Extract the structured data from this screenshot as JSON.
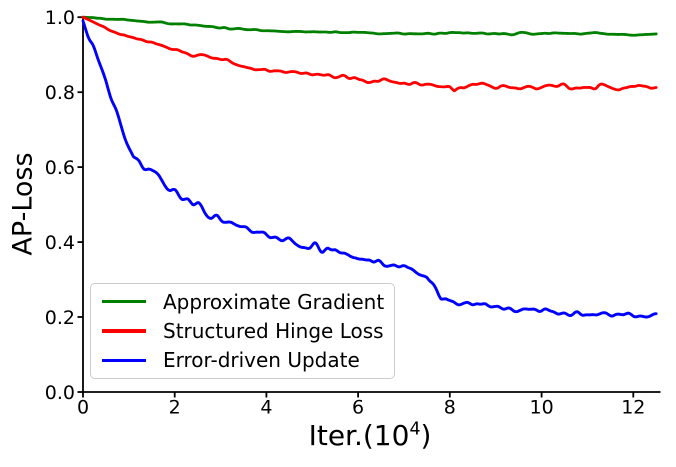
{
  "figure": {
    "background": "#ffffff",
    "text_color": "#000000",
    "spine_color": "#000000"
  },
  "chart_data": {
    "type": "line",
    "title": "",
    "xlabel": "Iter.(10^4)",
    "xlabel_parts": {
      "pre": "Iter.(10",
      "sup": "4",
      "post": ")"
    },
    "ylabel": "AP-Loss",
    "xlim": [
      0,
      12.5
    ],
    "ylim": [
      0,
      1.0
    ],
    "grid": false,
    "legend_position": "lower-left",
    "x_ticks": {
      "values": [
        0,
        2,
        4,
        6,
        8,
        10,
        12
      ],
      "labels": [
        "0",
        "2",
        "4",
        "6",
        "8",
        "10",
        "12"
      ]
    },
    "y_ticks": {
      "values": [
        0.0,
        0.2,
        0.4,
        0.6,
        0.8,
        1.0
      ],
      "labels": [
        "0.0",
        "0.2",
        "0.4",
        "0.6",
        "0.8",
        "1.0"
      ]
    },
    "series": [
      {
        "name": "Approximate Gradient",
        "color": "#008000",
        "line_width": 2.8,
        "noise_amp": 0.002,
        "noise_ramp": 0.4,
        "seed": 5,
        "anchors": [
          [
            0,
            1.0
          ],
          [
            0.5,
            0.996
          ],
          [
            1,
            0.992
          ],
          [
            1.5,
            0.987
          ],
          [
            2,
            0.983
          ],
          [
            2.5,
            0.979
          ],
          [
            3,
            0.972
          ],
          [
            3.5,
            0.968
          ],
          [
            4,
            0.965
          ],
          [
            4.5,
            0.962
          ],
          [
            5,
            0.961
          ],
          [
            5.5,
            0.96
          ],
          [
            6,
            0.959
          ],
          [
            6.5,
            0.957
          ],
          [
            7,
            0.957
          ],
          [
            7.5,
            0.956
          ],
          [
            8,
            0.958
          ],
          [
            8.5,
            0.957
          ],
          [
            9,
            0.956
          ],
          [
            9.5,
            0.957
          ],
          [
            10,
            0.956
          ],
          [
            10.5,
            0.957
          ],
          [
            11,
            0.955
          ],
          [
            11.5,
            0.956
          ],
          [
            12,
            0.954
          ],
          [
            12.2,
            0.953
          ],
          [
            12.5,
            0.957
          ]
        ]
      },
      {
        "name": "Structured Hinge Loss",
        "color": "#ff0000",
        "line_width": 2.8,
        "noise_amp": 0.005,
        "noise_ramp": 1.0,
        "seed": 9,
        "anchors": [
          [
            0,
            1.0
          ],
          [
            0.2,
            0.988
          ],
          [
            0.4,
            0.975
          ],
          [
            0.6,
            0.965
          ],
          [
            0.8,
            0.956
          ],
          [
            1,
            0.948
          ],
          [
            1.2,
            0.94
          ],
          [
            1.4,
            0.933
          ],
          [
            1.6,
            0.926
          ],
          [
            1.8,
            0.92
          ],
          [
            2,
            0.913
          ],
          [
            2.2,
            0.907
          ],
          [
            2.4,
            0.901
          ],
          [
            2.6,
            0.896
          ],
          [
            2.8,
            0.891
          ],
          [
            3,
            0.886
          ],
          [
            3.2,
            0.879
          ],
          [
            3.4,
            0.872
          ],
          [
            3.6,
            0.866
          ],
          [
            3.8,
            0.862
          ],
          [
            4,
            0.858
          ],
          [
            4.3,
            0.855
          ],
          [
            4.6,
            0.852
          ],
          [
            4.9,
            0.848
          ],
          [
            5.2,
            0.845
          ],
          [
            5.5,
            0.841
          ],
          [
            5.8,
            0.838
          ],
          [
            6.1,
            0.834
          ],
          [
            6.3,
            0.827
          ],
          [
            6.5,
            0.831
          ],
          [
            6.8,
            0.827
          ],
          [
            7.1,
            0.824
          ],
          [
            7.4,
            0.821
          ],
          [
            7.7,
            0.818
          ],
          [
            8,
            0.812
          ],
          [
            8.1,
            0.801
          ],
          [
            8.25,
            0.814
          ],
          [
            8.5,
            0.818
          ],
          [
            8.8,
            0.812
          ],
          [
            9.1,
            0.817
          ],
          [
            9.4,
            0.812
          ],
          [
            9.7,
            0.816
          ],
          [
            10,
            0.812
          ],
          [
            10.3,
            0.816
          ],
          [
            10.6,
            0.812
          ],
          [
            10.9,
            0.815
          ],
          [
            11.2,
            0.811
          ],
          [
            11.5,
            0.815
          ],
          [
            11.8,
            0.812
          ],
          [
            12.1,
            0.815
          ],
          [
            12.4,
            0.812
          ],
          [
            12.5,
            0.814
          ]
        ]
      },
      {
        "name": "Error-driven Update",
        "color": "#0000ff",
        "line_width": 2.9,
        "noise_amp": 0.008,
        "noise_ramp": -0.6,
        "seed": 13,
        "anchors": [
          [
            0,
            0.99
          ],
          [
            0.1,
            0.96
          ],
          [
            0.2,
            0.93
          ],
          [
            0.3,
            0.9
          ],
          [
            0.4,
            0.867
          ],
          [
            0.5,
            0.835
          ],
          [
            0.6,
            0.8
          ],
          [
            0.7,
            0.765
          ],
          [
            0.8,
            0.73
          ],
          [
            0.9,
            0.695
          ],
          [
            1,
            0.662
          ],
          [
            1.1,
            0.635
          ],
          [
            1.2,
            0.618
          ],
          [
            1.35,
            0.6
          ],
          [
            1.5,
            0.583
          ],
          [
            1.7,
            0.562
          ],
          [
            1.9,
            0.543
          ],
          [
            2.1,
            0.526
          ],
          [
            2.3,
            0.51
          ],
          [
            2.5,
            0.496
          ],
          [
            2.7,
            0.48
          ],
          [
            2.9,
            0.463
          ],
          [
            3.1,
            0.452
          ],
          [
            3.3,
            0.444
          ],
          [
            3.5,
            0.436
          ],
          [
            3.8,
            0.425
          ],
          [
            4.1,
            0.415
          ],
          [
            4.4,
            0.406
          ],
          [
            4.7,
            0.397
          ],
          [
            5,
            0.388
          ],
          [
            5.3,
            0.379
          ],
          [
            5.6,
            0.371
          ],
          [
            5.9,
            0.361
          ],
          [
            6.2,
            0.352
          ],
          [
            6.5,
            0.347
          ],
          [
            6.8,
            0.338
          ],
          [
            7.1,
            0.327
          ],
          [
            7.35,
            0.318
          ],
          [
            7.5,
            0.31
          ],
          [
            7.65,
            0.282
          ],
          [
            7.8,
            0.255
          ],
          [
            7.95,
            0.245
          ],
          [
            8.1,
            0.24
          ],
          [
            8.3,
            0.236
          ],
          [
            8.6,
            0.231
          ],
          [
            9,
            0.226
          ],
          [
            9.4,
            0.222
          ],
          [
            9.8,
            0.218
          ],
          [
            10.2,
            0.215
          ],
          [
            10.6,
            0.212
          ],
          [
            11,
            0.209
          ],
          [
            11.4,
            0.207
          ],
          [
            11.8,
            0.205
          ],
          [
            12.2,
            0.204
          ],
          [
            12.5,
            0.203
          ]
        ]
      }
    ]
  }
}
